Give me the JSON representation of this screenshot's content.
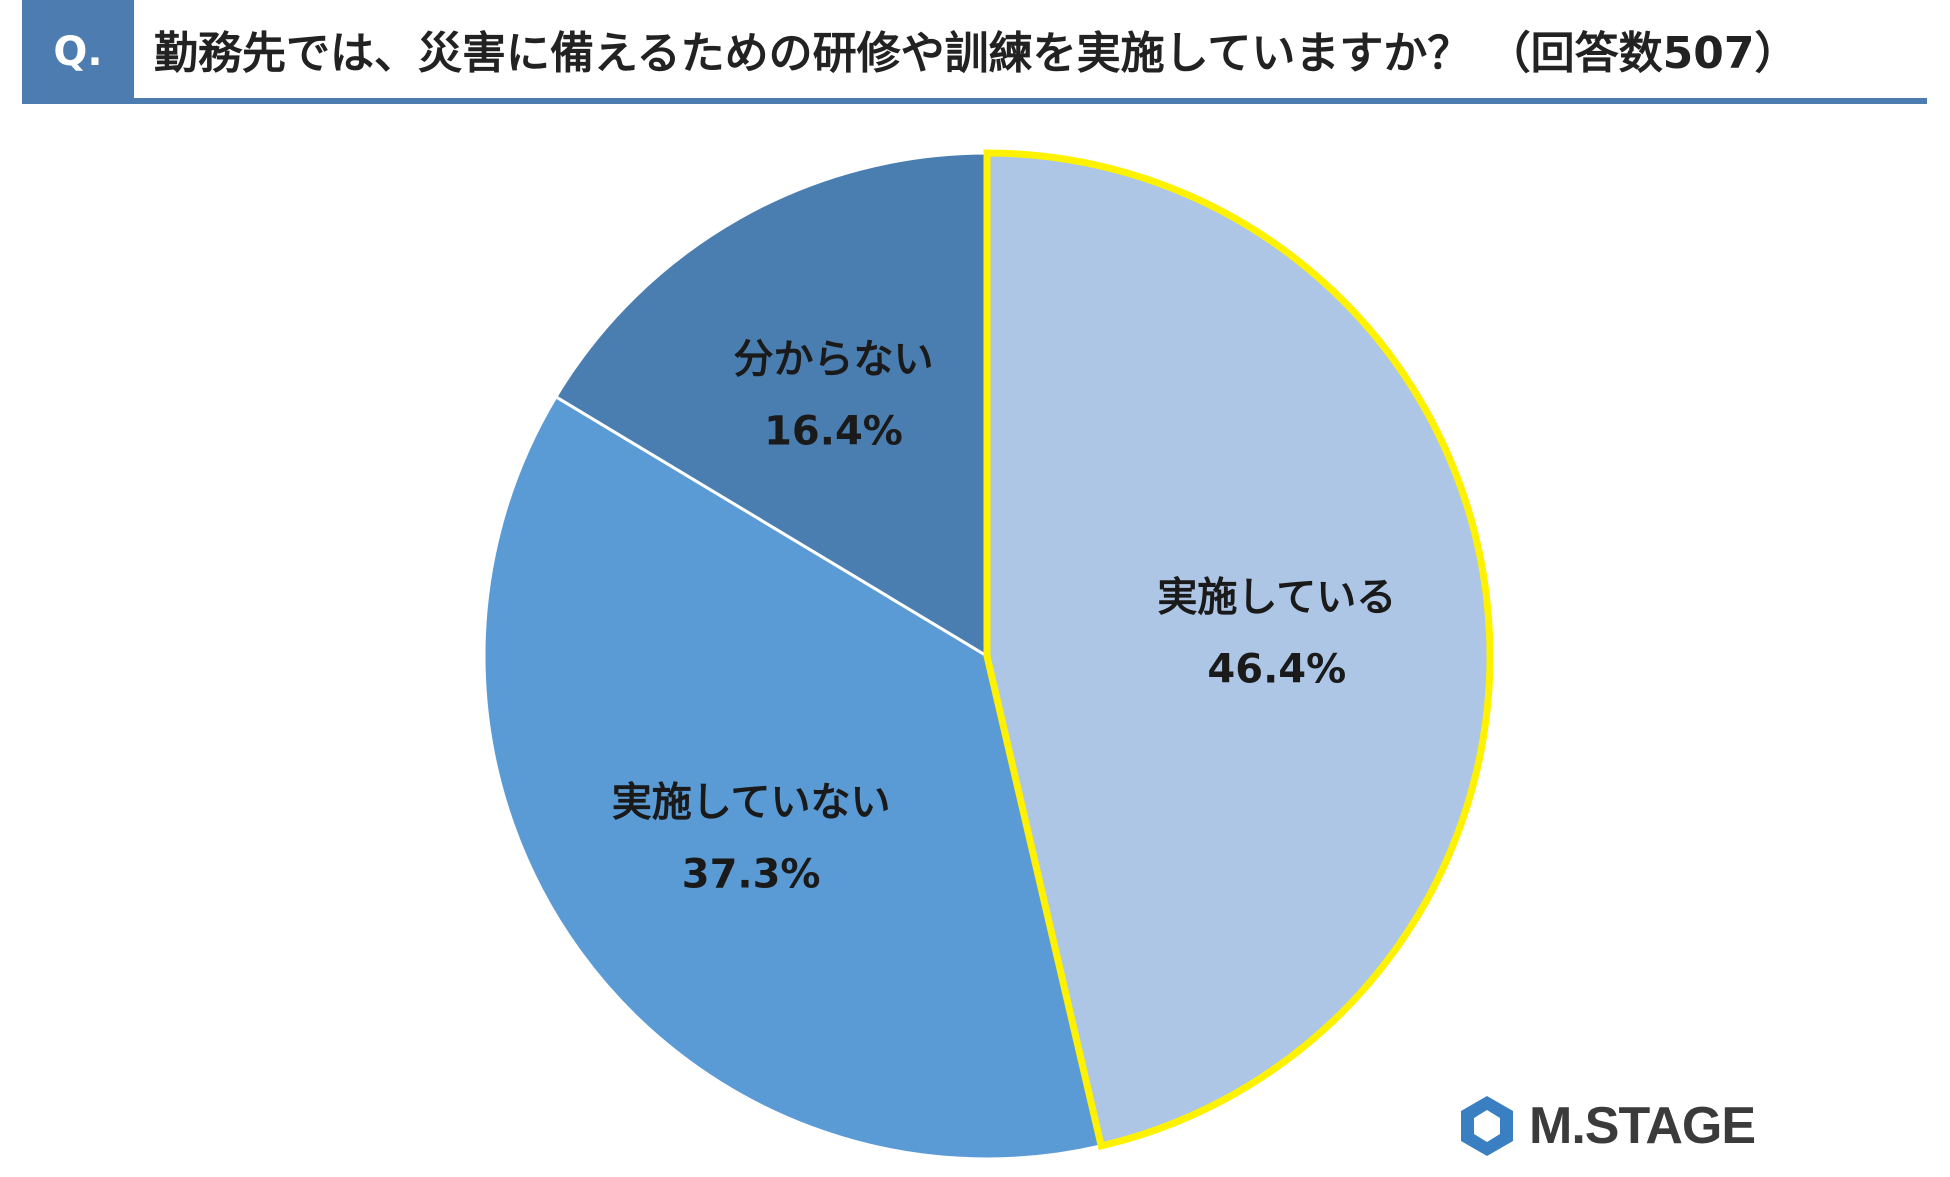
{
  "header": {
    "badge": "Q.",
    "title": "勤務先では、災害に備えるための研修や訓練を実施していますか？ （回答数507）"
  },
  "chart_data": {
    "type": "pie",
    "title": "勤務先では、災害に備えるための研修や訓練を実施していますか？ （回答数507）",
    "start_angle_deg": 0,
    "direction": "clockwise",
    "slices": [
      {
        "label": "実施している",
        "value": 46.4,
        "value_label": "46.4%",
        "color": "#adc6e5",
        "highlight": "#fff200"
      },
      {
        "label": "実施していない",
        "value": 37.3,
        "value_label": "37.3%",
        "color": "#5b9bd5"
      },
      {
        "label": "分からない",
        "value": 16.4,
        "value_label": "16.4%",
        "color": "#4a7eb0"
      }
    ]
  },
  "brand": {
    "text": "M.STAGE",
    "logo_color": "#3a7fc1"
  }
}
